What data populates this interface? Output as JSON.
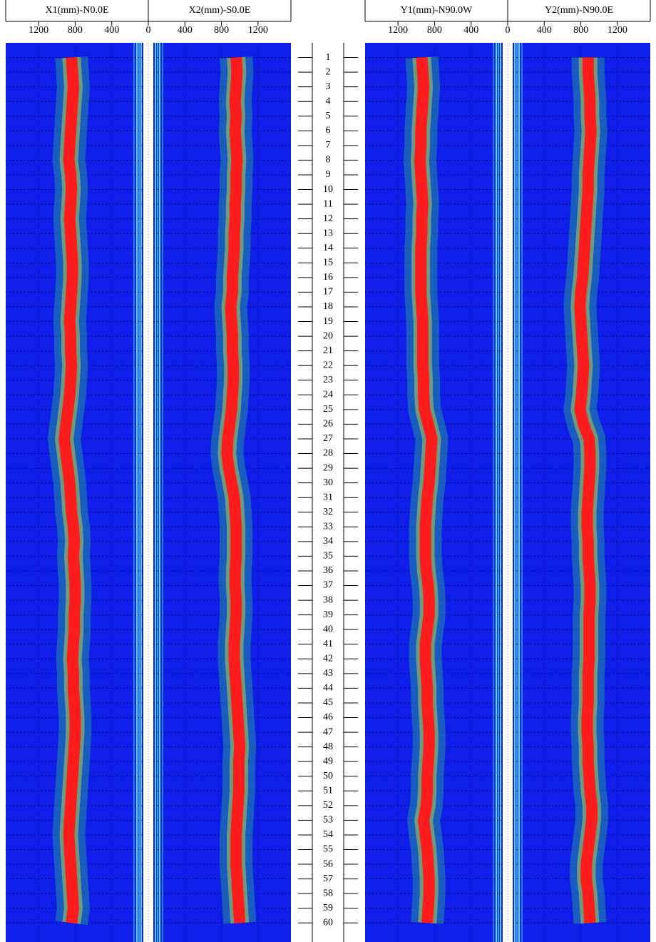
{
  "chart_data": {
    "type": "line",
    "orientation": "vertical",
    "grid": true,
    "background_color": "#0f1ee8",
    "ylim": [
      0,
      61.3
    ],
    "depths": [
      1,
      2,
      3,
      4,
      5,
      6,
      7,
      8,
      9,
      10,
      11,
      12,
      13,
      14,
      15,
      16,
      17,
      18,
      19,
      20,
      21,
      22,
      23,
      24,
      25,
      26,
      27,
      28,
      29,
      30,
      31,
      32,
      33,
      34,
      35,
      36,
      37,
      38,
      39,
      40,
      41,
      42,
      43,
      44,
      45,
      46,
      47,
      48,
      49,
      50,
      51,
      52,
      53,
      54,
      55,
      56,
      57,
      58,
      59,
      60
    ],
    "panels": [
      {
        "title": "X1(mm)-N0.0E",
        "xlim": [
          1560,
          0
        ],
        "xticks": [
          1200,
          800,
          400
        ],
        "color": "#ff1c1c",
        "values": [
          840,
          830,
          820,
          830,
          840,
          850,
          860,
          870,
          850,
          840,
          850,
          860,
          850,
          840,
          830,
          830,
          840,
          850,
          860,
          850,
          850,
          840,
          850,
          860,
          880,
          900,
          920,
          900,
          880,
          860,
          850,
          840,
          820,
          810,
          820,
          810,
          800,
          800,
          810,
          810,
          820,
          830,
          820,
          820,
          810,
          800,
          800,
          810,
          820,
          830,
          840,
          850,
          860,
          870,
          860,
          850,
          840,
          830,
          820,
          840
        ]
      },
      {
        "title": "X2(mm)-S0.0E",
        "xlim": [
          0,
          1560
        ],
        "xticks": [
          0,
          400,
          800,
          1200
        ],
        "color": "#ff1c1c",
        "values": [
          960,
          970,
          960,
          950,
          960,
          950,
          960,
          970,
          960,
          960,
          950,
          950,
          940,
          940,
          930,
          920,
          920,
          900,
          910,
          920,
          920,
          930,
          930,
          920,
          910,
          890,
          870,
          860,
          880,
          910,
          940,
          950,
          960,
          960,
          960,
          950,
          950,
          960,
          960,
          950,
          940,
          940,
          950,
          960,
          970,
          980,
          990,
          1000,
          990,
          990,
          990,
          980,
          970,
          960,
          960,
          960,
          970,
          980,
          990,
          1000
        ]
      },
      {
        "title": "Y1(mm)-N90.0W",
        "xlim": [
          1560,
          0
        ],
        "xticks": [
          1200,
          800,
          400
        ],
        "color": "#ff1c1c",
        "values": [
          940,
          930,
          920,
          930,
          940,
          950,
          950,
          960,
          950,
          940,
          930,
          940,
          940,
          950,
          950,
          950,
          950,
          940,
          930,
          930,
          930,
          930,
          920,
          920,
          910,
          870,
          830,
          840,
          850,
          860,
          880,
          890,
          900,
          900,
          900,
          890,
          870,
          860,
          860,
          880,
          900,
          900,
          890,
          880,
          880,
          870,
          860,
          860,
          870,
          880,
          880,
          890,
          920,
          900,
          880,
          870,
          860,
          860,
          870,
          880
        ]
      },
      {
        "title": "Y2(mm)-N90.0E",
        "xlim": [
          0,
          1560
        ],
        "xticks": [
          0,
          400,
          800,
          1200
        ],
        "color": "#ff1c1c",
        "values": [
          880,
          880,
          890,
          900,
          900,
          910,
          900,
          890,
          880,
          880,
          870,
          860,
          850,
          840,
          830,
          820,
          800,
          790,
          800,
          810,
          820,
          830,
          820,
          810,
          790,
          830,
          890,
          900,
          900,
          890,
          880,
          870,
          870,
          880,
          880,
          890,
          900,
          900,
          890,
          890,
          890,
          890,
          880,
          880,
          880,
          870,
          870,
          880,
          880,
          890,
          900,
          920,
          920,
          900,
          880,
          860,
          860,
          880,
          890,
          900
        ]
      }
    ]
  }
}
